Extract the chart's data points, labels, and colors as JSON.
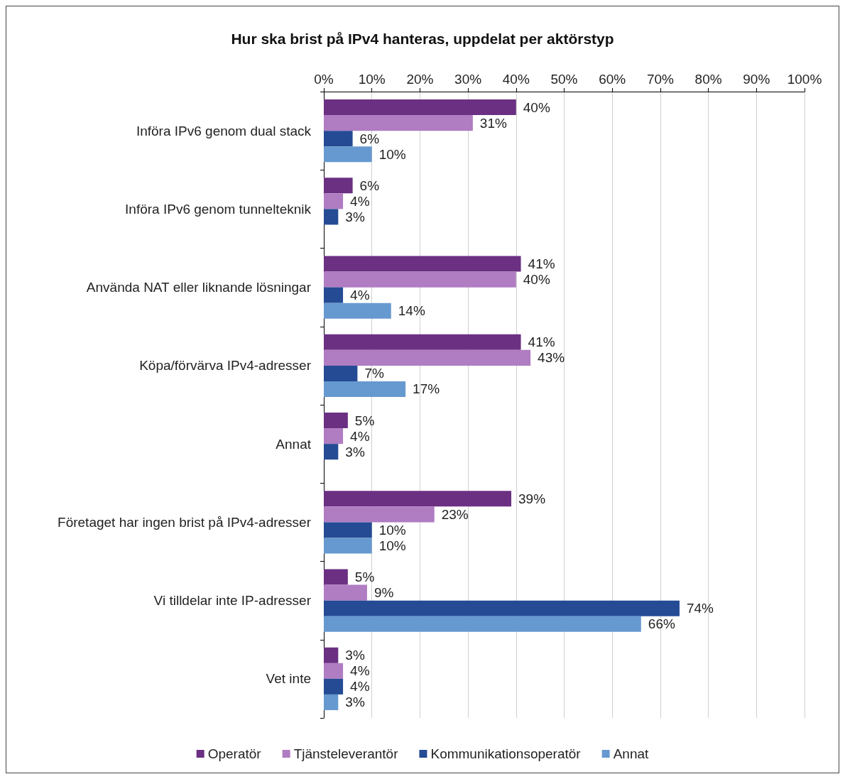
{
  "chart_data": {
    "type": "bar",
    "orientation": "horizontal",
    "title": "Hur ska brist på IPv4 hanteras, uppdelat per aktörstyp",
    "categories": [
      "Införa IPv6 genom dual stack",
      "Införa IPv6 genom tunnelteknik",
      "Använda NAT eller liknande lösningar",
      "Köpa/förvärva IPv4-adresser",
      "Annat",
      "Företaget har ingen brist på IPv4-adresser",
      "Vi tilldelar inte IP-adresser",
      "Vet inte"
    ],
    "series": [
      {
        "name": "Operatör",
        "color": "#6b3082",
        "values": [
          40,
          6,
          41,
          41,
          5,
          39,
          5,
          3
        ],
        "value_labels": [
          "40%",
          "6%",
          "41%",
          "41%",
          "5%",
          "39%",
          "5%",
          "3%"
        ]
      },
      {
        "name": "Tjänsteleverantör",
        "color": "#b07cc2",
        "values": [
          31,
          4,
          40,
          43,
          4,
          23,
          9,
          4
        ],
        "value_labels": [
          "31%",
          "4%",
          "40%",
          "43%",
          "4%",
          "23%",
          "9%",
          "4%"
        ]
      },
      {
        "name": "Kommunikationsoperatör",
        "color": "#244b94",
        "values": [
          6,
          3,
          4,
          7,
          3,
          10,
          74,
          4
        ],
        "value_labels": [
          "6%",
          "3%",
          "4%",
          "7%",
          "3%",
          "10%",
          "74%",
          "4%"
        ]
      },
      {
        "name": "Annat",
        "color": "#6699cf",
        "values": [
          10,
          null,
          14,
          17,
          null,
          10,
          66,
          3
        ],
        "value_labels": [
          "10%",
          null,
          "14%",
          "17%",
          null,
          "10%",
          "66%",
          "3%"
        ]
      }
    ],
    "xlim": [
      0,
      100
    ],
    "xticks": [
      {
        "value": 0,
        "label": "0%"
      },
      {
        "value": 10,
        "label": "10%"
      },
      {
        "value": 20,
        "label": "20%"
      },
      {
        "value": 30,
        "label": "30%"
      },
      {
        "value": 40,
        "label": "40%"
      },
      {
        "value": 50,
        "label": "50%"
      },
      {
        "value": 60,
        "label": "60%"
      },
      {
        "value": 70,
        "label": "70%"
      },
      {
        "value": 80,
        "label": "80%"
      },
      {
        "value": 90,
        "label": "90%"
      },
      {
        "value": 100,
        "label": "100%"
      }
    ],
    "grid": "x",
    "legend": "bottom"
  }
}
